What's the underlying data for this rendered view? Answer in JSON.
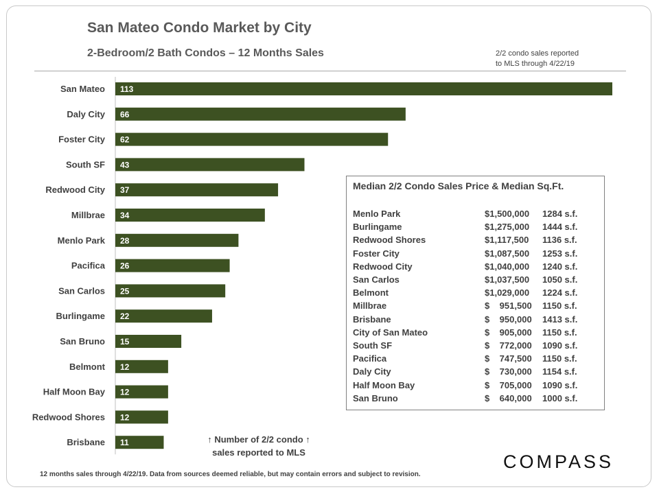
{
  "header": {
    "title": "San Mateo Condo Market by City",
    "subtitle": "2-Bedroom/2 Bath Condos – 12 Months Sales",
    "note_line1": "2/2 condo sales reported",
    "note_line2": "to MLS through 4/22/19"
  },
  "chart_data": {
    "type": "bar",
    "orientation": "horizontal",
    "title": "San Mateo Condo Market by City",
    "subtitle": "2-Bedroom/2 Bath Condos – 12 Months Sales",
    "categories": [
      "San Mateo",
      "Daly City",
      "Foster City",
      "South SF",
      "Redwood City",
      "Millbrae",
      "Menlo Park",
      "Pacifica",
      "San Carlos",
      "Burlingame",
      "San Bruno",
      "Belmont",
      "Half Moon Bay",
      "Redwood Shores",
      "Brisbane"
    ],
    "values": [
      113,
      66,
      62,
      43,
      37,
      34,
      28,
      26,
      25,
      22,
      15,
      12,
      12,
      12,
      11
    ],
    "xlim": [
      0,
      113
    ],
    "bar_color": "#3d5122",
    "data_labels": "inside-left",
    "grid": false,
    "legend": "none"
  },
  "annotation": {
    "line1": "↑ Number of 2/2 condo ↑",
    "line2": "sales reported to MLS"
  },
  "median_table": {
    "title": "Median 2/2 Condo Sales Price & Median Sq.Ft.",
    "rows": [
      {
        "city": "Menlo Park",
        "price": "$1,500,000",
        "sqft": "1284 s.f."
      },
      {
        "city": "Burlingame",
        "price": "$1,275,000",
        "sqft": "1444 s.f."
      },
      {
        "city": "Redwood Shores",
        "price": "$1,117,500",
        "sqft": "1136 s.f."
      },
      {
        "city": "Foster City",
        "price": "$1,087,500",
        "sqft": "1253 s.f."
      },
      {
        "city": "Redwood City",
        "price": "$1,040,000",
        "sqft": "1240 s.f."
      },
      {
        "city": "San Carlos",
        "price": "$1,037,500",
        "sqft": "1050 s.f."
      },
      {
        "city": "Belmont",
        "price": "$1,029,000",
        "sqft": "1224 s.f."
      },
      {
        "city": "Millbrae",
        "price": "$    951,500",
        "sqft": "1150 s.f."
      },
      {
        "city": "Brisbane",
        "price": "$    950,000",
        "sqft": "1413 s.f."
      },
      {
        "city": "City of San Mateo",
        "price": "$    905,000",
        "sqft": "1150 s.f."
      },
      {
        "city": "South SF",
        "price": "$    772,000",
        "sqft": "1090 s.f."
      },
      {
        "city": "Pacifica",
        "price": "$    747,500",
        "sqft": "1150 s.f."
      },
      {
        "city": "Daly City",
        "price": "$    730,000",
        "sqft": "1154 s.f."
      },
      {
        "city": "Half Moon Bay",
        "price": "$    705,000",
        "sqft": "1090 s.f."
      },
      {
        "city": "San Bruno",
        "price": "$    640,000",
        "sqft": "1000 s.f."
      }
    ]
  },
  "footer": {
    "text": "12 months sales through 4/22/19. Data from sources deemed reliable, but may contain errors and subject to revision."
  },
  "logo": {
    "text": "COMPASS"
  }
}
